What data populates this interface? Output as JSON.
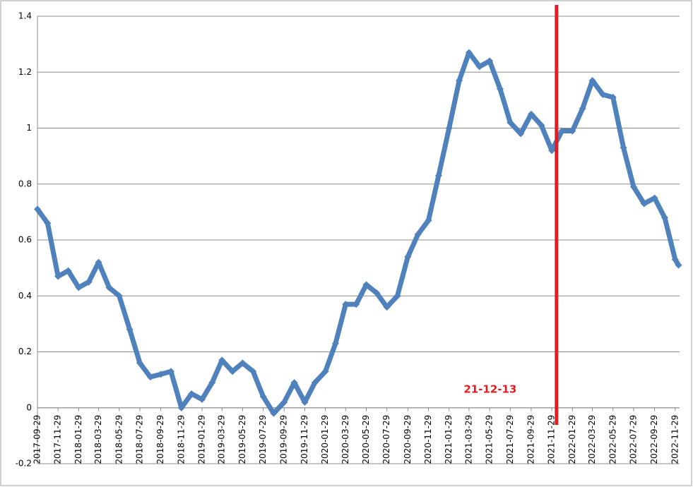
{
  "chart_data": {
    "type": "line",
    "x": [
      "2017-09-29",
      "2017-10-29",
      "2017-11-29",
      "2017-12-29",
      "2018-01-29",
      "2018-02-28",
      "2018-03-29",
      "2018-04-29",
      "2018-05-29",
      "2018-06-29",
      "2018-07-29",
      "2018-08-29",
      "2018-09-29",
      "2018-10-29",
      "2018-11-29",
      "2018-12-29",
      "2019-01-29",
      "2019-02-28",
      "2019-03-29",
      "2019-04-29",
      "2019-05-29",
      "2019-06-29",
      "2019-07-29",
      "2019-08-29",
      "2019-09-29",
      "2019-10-29",
      "2019-11-29",
      "2019-12-29",
      "2020-01-29",
      "2020-02-28",
      "2020-03-29",
      "2020-04-29",
      "2020-05-29",
      "2020-06-29",
      "2020-07-29",
      "2020-08-29",
      "2020-09-29",
      "2020-10-29",
      "2020-11-29",
      "2020-12-29",
      "2021-01-29",
      "2021-02-28",
      "2021-03-29",
      "2021-04-29",
      "2021-05-29",
      "2021-06-29",
      "2021-07-29",
      "2021-08-29",
      "2021-09-29",
      "2021-10-29",
      "2021-11-29",
      "2021-12-29",
      "2022-01-29",
      "2022-02-28",
      "2022-03-29",
      "2022-04-29",
      "2022-05-29",
      "2022-06-29",
      "2022-07-29",
      "2022-08-29",
      "2022-09-29",
      "2022-10-29",
      "2022-11-29",
      "2022-12-09"
    ],
    "series": [
      {
        "color": "#4f81bd",
        "values": [
          0.71,
          0.66,
          0.47,
          0.49,
          0.43,
          0.45,
          0.52,
          0.43,
          0.4,
          0.28,
          0.16,
          0.11,
          0.12,
          0.13,
          0.0,
          0.05,
          0.03,
          0.09,
          0.17,
          0.13,
          0.16,
          0.13,
          0.04,
          -0.02,
          0.02,
          0.09,
          0.02,
          0.09,
          0.13,
          0.23,
          0.37,
          0.37,
          0.44,
          0.41,
          0.36,
          0.4,
          0.54,
          0.62,
          0.67,
          0.83,
          1.0,
          1.17,
          1.27,
          1.22,
          1.24,
          1.14,
          1.02,
          0.98,
          1.05,
          1.01,
          0.92,
          0.99,
          0.99,
          1.07,
          1.17,
          1.12,
          1.11,
          0.93,
          0.79,
          0.73,
          0.75,
          0.68,
          0.53,
          0.51
        ]
      }
    ],
    "xlim": [
      "2017-09-29",
      "2022-12-12"
    ],
    "xticks": [
      "2017-09-29",
      "2017-11-29",
      "2018-01-29",
      "2018-03-29",
      "2018-05-29",
      "2018-07-29",
      "2018-09-29",
      "2018-11-29",
      "2019-01-29",
      "2019-03-29",
      "2019-05-29",
      "2019-07-29",
      "2019-09-29",
      "2019-11-29",
      "2020-01-29",
      "2020-03-29",
      "2020-05-29",
      "2020-07-29",
      "2020-09-29",
      "2020-11-29",
      "2021-01-29",
      "2021-03-29",
      "2021-05-29",
      "2021-07-29",
      "2021-09-29",
      "2021-11-29",
      "2022-01-29",
      "2022-03-29",
      "2022-05-29",
      "2022-07-29",
      "2022-09-29",
      "2022-11-29"
    ],
    "ylim": [
      -0.2,
      1.4
    ],
    "yticks": [
      -0.2,
      0,
      0.2,
      0.4,
      0.6,
      0.8,
      1,
      1.2,
      1.4
    ],
    "grid": true,
    "annotation": {
      "text": "21-12-13",
      "x": "2021-12-13",
      "color": "#e31c23"
    }
  }
}
